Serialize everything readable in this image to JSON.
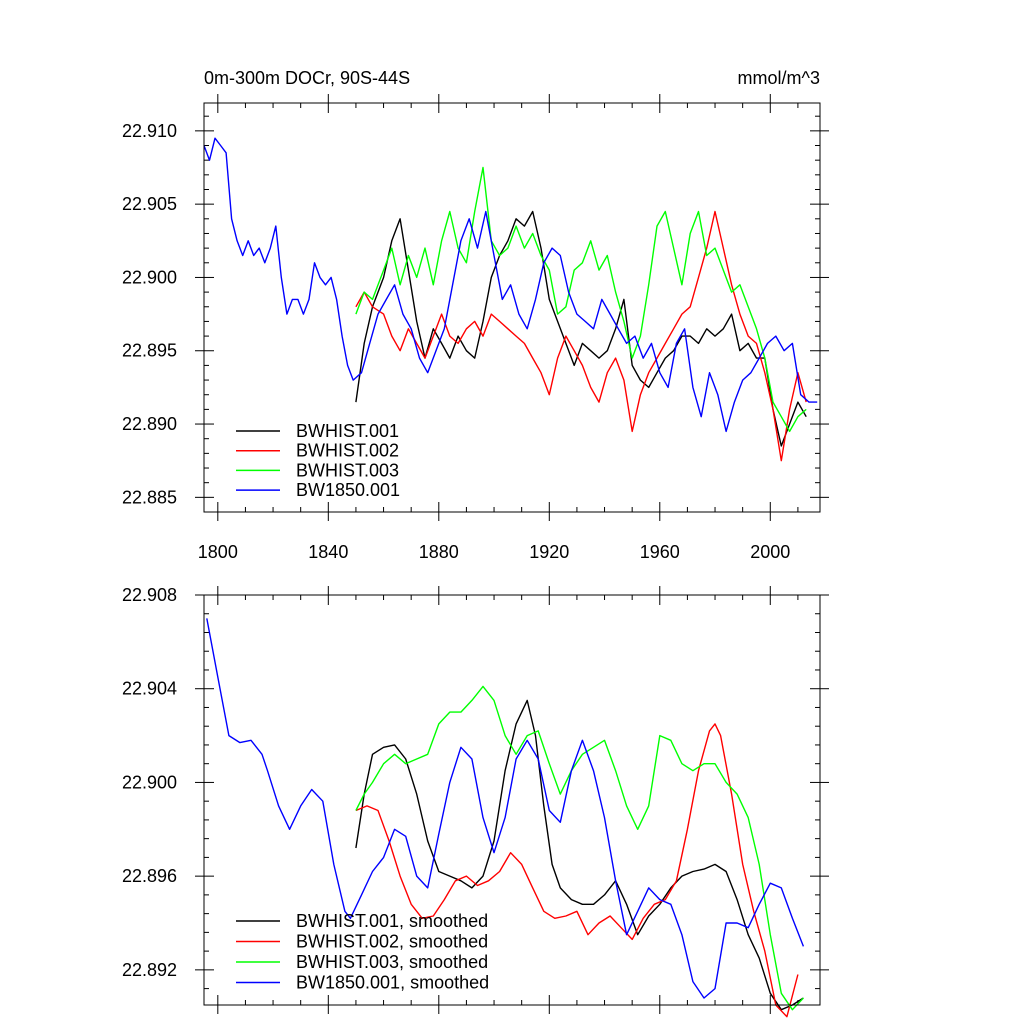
{
  "chart_data": [
    {
      "type": "line",
      "title_left": "0m-300m DOCr, 90S-44S",
      "title_right": "mmol/m^3",
      "xlim": [
        1795,
        2018
      ],
      "ylim": [
        22.884,
        22.9119
      ],
      "x_ticks": [
        1800,
        1840,
        1880,
        1920,
        1960,
        2000
      ],
      "x_tick_labels": [
        "1800",
        "1840",
        "1880",
        "1920",
        "1960",
        "2000"
      ],
      "y_ticks": [
        22.885,
        22.89,
        22.895,
        22.9,
        22.905,
        22.91
      ],
      "y_tick_labels": [
        "22.885",
        "22.890",
        "22.895",
        "22.900",
        "22.905",
        "22.910"
      ],
      "legend_position": "bottom-left",
      "series": [
        {
          "name": "BWHIST.001",
          "color": "#000000",
          "x": [
            1850,
            1853,
            1856,
            1860,
            1863,
            1866,
            1869,
            1872,
            1875,
            1878,
            1881,
            1884,
            1887,
            1890,
            1893,
            1896,
            1899,
            1902,
            1905,
            1908,
            1911,
            1914,
            1917,
            1920,
            1923,
            1926,
            1929,
            1932,
            1935,
            1938,
            1941,
            1944,
            1947,
            1950,
            1953,
            1956,
            1959,
            1962,
            1965,
            1968,
            1971,
            1974,
            1977,
            1980,
            1983,
            1986,
            1989,
            1992,
            1995,
            1998,
            2001,
            2004,
            2007,
            2010,
            2013
          ],
          "values": [
            22.8915,
            22.8955,
            22.898,
            22.9,
            22.9025,
            22.904,
            22.9005,
            22.897,
            22.8945,
            22.8965,
            22.8955,
            22.8945,
            22.896,
            22.895,
            22.8945,
            22.897,
            22.9,
            22.9015,
            22.9025,
            22.904,
            22.9035,
            22.9045,
            22.902,
            22.8985,
            22.897,
            22.8955,
            22.894,
            22.8955,
            22.895,
            22.8945,
            22.895,
            22.8965,
            22.8985,
            22.894,
            22.893,
            22.8925,
            22.8935,
            22.8945,
            22.895,
            22.896,
            22.896,
            22.8955,
            22.8965,
            22.896,
            22.8965,
            22.8975,
            22.895,
            22.8955,
            22.8945,
            22.8945,
            22.891,
            22.8885,
            22.89,
            22.8915,
            22.8905
          ]
        },
        {
          "name": "BWHIST.002",
          "color": "#ff0000",
          "x": [
            1850,
            1853,
            1856,
            1860,
            1863,
            1866,
            1869,
            1872,
            1875,
            1878,
            1881,
            1884,
            1887,
            1890,
            1893,
            1896,
            1899,
            1902,
            1905,
            1908,
            1911,
            1914,
            1917,
            1920,
            1923,
            1926,
            1929,
            1932,
            1935,
            1938,
            1941,
            1944,
            1947,
            1950,
            1953,
            1956,
            1959,
            1962,
            1965,
            1968,
            1971,
            1974,
            1977,
            1980,
            1983,
            1986,
            1989,
            1992,
            1995,
            1998,
            2001,
            2004,
            2007,
            2010,
            2013
          ],
          "values": [
            22.898,
            22.899,
            22.898,
            22.8975,
            22.896,
            22.895,
            22.8965,
            22.8955,
            22.8945,
            22.896,
            22.8975,
            22.896,
            22.8955,
            22.8965,
            22.897,
            22.896,
            22.8975,
            22.897,
            22.8965,
            22.896,
            22.8955,
            22.8945,
            22.8935,
            22.892,
            22.8945,
            22.896,
            22.895,
            22.894,
            22.8925,
            22.8915,
            22.8935,
            22.8945,
            22.893,
            22.8895,
            22.892,
            22.8935,
            22.8945,
            22.8955,
            22.8965,
            22.8975,
            22.898,
            22.9,
            22.902,
            22.9045,
            22.902,
            22.8995,
            22.8975,
            22.896,
            22.8955,
            22.8935,
            22.891,
            22.8875,
            22.891,
            22.8935,
            22.8915
          ]
        },
        {
          "name": "BWHIST.003",
          "color": "#00ff00",
          "x": [
            1850,
            1853,
            1856,
            1860,
            1863,
            1866,
            1869,
            1872,
            1875,
            1878,
            1881,
            1884,
            1887,
            1890,
            1893,
            1896,
            1899,
            1902,
            1905,
            1908,
            1911,
            1914,
            1917,
            1920,
            1923,
            1926,
            1929,
            1932,
            1935,
            1938,
            1941,
            1944,
            1947,
            1950,
            1953,
            1956,
            1959,
            1962,
            1965,
            1968,
            1971,
            1974,
            1977,
            1980,
            1983,
            1986,
            1989,
            1992,
            1995,
            1998,
            2001,
            2004,
            2007,
            2010,
            2013
          ],
          "values": [
            22.8975,
            22.899,
            22.8985,
            22.9005,
            22.902,
            22.8995,
            22.9015,
            22.9,
            22.902,
            22.8995,
            22.9025,
            22.9045,
            22.902,
            22.901,
            22.9045,
            22.9075,
            22.9025,
            22.9015,
            22.902,
            22.9035,
            22.902,
            22.903,
            22.9015,
            22.9005,
            22.8975,
            22.898,
            22.9005,
            22.901,
            22.9025,
            22.9005,
            22.9015,
            22.899,
            22.897,
            22.8945,
            22.896,
            22.8995,
            22.9035,
            22.9045,
            22.902,
            22.8995,
            22.903,
            22.9045,
            22.9015,
            22.902,
            22.9005,
            22.899,
            22.8995,
            22.898,
            22.8965,
            22.8945,
            22.8915,
            22.8905,
            22.8895,
            22.8905,
            22.891
          ]
        },
        {
          "name": "BW1850.001",
          "color": "#0000ff",
          "x": [
            1795,
            1797,
            1799,
            1801,
            1803,
            1805,
            1807,
            1809,
            1811,
            1813,
            1815,
            1817,
            1819,
            1821,
            1823,
            1825,
            1827,
            1829,
            1831,
            1833,
            1835,
            1837,
            1839,
            1841,
            1843,
            1845,
            1847,
            1849,
            1852,
            1855,
            1858,
            1861,
            1864,
            1867,
            1870,
            1873,
            1876,
            1879,
            1882,
            1885,
            1888,
            1891,
            1894,
            1897,
            1900,
            1903,
            1906,
            1909,
            1912,
            1915,
            1918,
            1921,
            1924,
            1927,
            1930,
            1933,
            1936,
            1939,
            1942,
            1945,
            1948,
            1951,
            1954,
            1957,
            1960,
            1963,
            1966,
            1969,
            1972,
            1975,
            1978,
            1981,
            1984,
            1987,
            1990,
            1993,
            1996,
            1999,
            2002,
            2005,
            2008,
            2011,
            2014,
            2017
          ],
          "values": [
            22.909,
            22.908,
            22.9095,
            22.909,
            22.9085,
            22.904,
            22.9025,
            22.9015,
            22.9025,
            22.9015,
            22.902,
            22.901,
            22.902,
            22.9035,
            22.9,
            22.8975,
            22.8985,
            22.8985,
            22.8975,
            22.8985,
            22.901,
            22.9,
            22.8995,
            22.9,
            22.8985,
            22.896,
            22.894,
            22.893,
            22.8935,
            22.8955,
            22.8975,
            22.8985,
            22.8995,
            22.8975,
            22.8965,
            22.8945,
            22.8935,
            22.895,
            22.8965,
            22.8995,
            22.9025,
            22.904,
            22.902,
            22.9045,
            22.9015,
            22.8985,
            22.8995,
            22.8975,
            22.8965,
            22.8985,
            22.901,
            22.902,
            22.9015,
            22.899,
            22.8975,
            22.897,
            22.8965,
            22.8985,
            22.8975,
            22.8965,
            22.8955,
            22.896,
            22.8945,
            22.8955,
            22.8935,
            22.8925,
            22.8955,
            22.8965,
            22.8925,
            22.8905,
            22.8935,
            22.892,
            22.8895,
            22.8915,
            22.893,
            22.8935,
            22.8945,
            22.8955,
            22.896,
            22.895,
            22.8955,
            22.892,
            22.8915,
            22.8915
          ]
        }
      ]
    },
    {
      "type": "line",
      "xlim": [
        1795,
        2018
      ],
      "ylim": [
        22.8905,
        22.908
      ],
      "x_ticks": [
        1800,
        1840,
        1880,
        1920,
        1960,
        2000
      ],
      "x_tick_labels": [],
      "y_ticks": [
        22.892,
        22.896,
        22.9,
        22.904,
        22.908
      ],
      "y_tick_labels": [
        "22.892",
        "22.896",
        "22.900",
        "22.904",
        "22.908"
      ],
      "legend_position": "bottom-left",
      "series": [
        {
          "name": "BWHIST.001, smoothed",
          "color": "#000000",
          "x": [
            1850,
            1853,
            1856,
            1860,
            1864,
            1868,
            1872,
            1876,
            1880,
            1884,
            1888,
            1892,
            1896,
            1900,
            1904,
            1908,
            1912,
            1915,
            1918,
            1921,
            1924,
            1928,
            1932,
            1936,
            1940,
            1944,
            1948,
            1952,
            1956,
            1960,
            1964,
            1968,
            1972,
            1976,
            1980,
            1984,
            1988,
            1992,
            1996,
            2000,
            2004,
            2008,
            2012
          ],
          "values": [
            22.8972,
            22.8995,
            22.9012,
            22.9015,
            22.9016,
            22.901,
            22.8995,
            22.8975,
            22.8962,
            22.896,
            22.8958,
            22.8955,
            22.896,
            22.8975,
            22.9005,
            22.9025,
            22.9035,
            22.902,
            22.899,
            22.8965,
            22.8955,
            22.895,
            22.8948,
            22.8948,
            22.8952,
            22.8958,
            22.8948,
            22.8935,
            22.8943,
            22.8948,
            22.8955,
            22.896,
            22.8962,
            22.8963,
            22.8965,
            22.8962,
            22.895,
            22.8935,
            22.8925,
            22.891,
            22.8903,
            22.8905,
            22.8908
          ]
        },
        {
          "name": "BWHIST.002, smoothed",
          "color": "#ff0000",
          "x": [
            1850,
            1854,
            1858,
            1862,
            1866,
            1870,
            1874,
            1878,
            1882,
            1886,
            1890,
            1894,
            1898,
            1902,
            1906,
            1910,
            1914,
            1918,
            1922,
            1926,
            1930,
            1934,
            1938,
            1942,
            1946,
            1950,
            1954,
            1958,
            1962,
            1966,
            1970,
            1974,
            1978,
            1980,
            1982,
            1986,
            1990,
            1994,
            1998,
            2002,
            2006,
            2010
          ],
          "values": [
            22.8988,
            22.899,
            22.8988,
            22.8975,
            22.896,
            22.8948,
            22.8942,
            22.8943,
            22.895,
            22.8958,
            22.896,
            22.8956,
            22.8958,
            22.8962,
            22.897,
            22.8965,
            22.8955,
            22.8945,
            22.8942,
            22.8943,
            22.8945,
            22.8935,
            22.894,
            22.8943,
            22.8938,
            22.8933,
            22.8942,
            22.8948,
            22.895,
            22.8958,
            22.898,
            22.9005,
            22.9022,
            22.9025,
            22.902,
            22.8995,
            22.8965,
            22.8945,
            22.8928,
            22.8905,
            22.89,
            22.8918
          ]
        },
        {
          "name": "BWHIST.003, smoothed",
          "color": "#00ff00",
          "x": [
            1850,
            1853,
            1856,
            1860,
            1864,
            1868,
            1872,
            1876,
            1880,
            1884,
            1888,
            1892,
            1896,
            1900,
            1904,
            1908,
            1912,
            1916,
            1920,
            1924,
            1928,
            1932,
            1936,
            1940,
            1944,
            1948,
            1952,
            1956,
            1960,
            1964,
            1968,
            1972,
            1976,
            1980,
            1984,
            1988,
            1992,
            1996,
            2000,
            2004,
            2008,
            2012
          ],
          "values": [
            22.8988,
            22.8995,
            22.9,
            22.9008,
            22.9012,
            22.9008,
            22.901,
            22.9012,
            22.9025,
            22.903,
            22.903,
            22.9035,
            22.9041,
            22.9035,
            22.902,
            22.9012,
            22.902,
            22.9022,
            22.9008,
            22.8995,
            22.9005,
            22.9012,
            22.9015,
            22.9018,
            22.9005,
            22.899,
            22.898,
            22.899,
            22.902,
            22.9018,
            22.9008,
            22.9005,
            22.9008,
            22.9008,
            22.9,
            22.8995,
            22.8985,
            22.8965,
            22.8935,
            22.891,
            22.8903,
            22.8908
          ]
        },
        {
          "name": "BW1850.001, smoothed",
          "color": "#0000ff",
          "x": [
            1796,
            1800,
            1804,
            1808,
            1812,
            1816,
            1818,
            1822,
            1826,
            1830,
            1834,
            1838,
            1842,
            1846,
            1848,
            1852,
            1856,
            1860,
            1864,
            1868,
            1872,
            1876,
            1880,
            1884,
            1888,
            1892,
            1896,
            1900,
            1904,
            1908,
            1912,
            1916,
            1920,
            1924,
            1928,
            1932,
            1936,
            1940,
            1944,
            1948,
            1952,
            1956,
            1960,
            1964,
            1968,
            1972,
            1976,
            1980,
            1984,
            1988,
            1992,
            1996,
            2000,
            2004,
            2008,
            2012
          ],
          "values": [
            22.907,
            22.9045,
            22.902,
            22.9017,
            22.9018,
            22.9012,
            22.9005,
            22.899,
            22.898,
            22.899,
            22.8997,
            22.8992,
            22.8965,
            22.8945,
            22.8942,
            22.8952,
            22.8962,
            22.8968,
            22.898,
            22.8977,
            22.896,
            22.8955,
            22.8978,
            22.9,
            22.9015,
            22.901,
            22.8985,
            22.897,
            22.8985,
            22.901,
            22.9018,
            22.901,
            22.8988,
            22.8983,
            22.9005,
            22.9018,
            22.9005,
            22.8985,
            22.8958,
            22.8935,
            22.8945,
            22.8955,
            22.895,
            22.8948,
            22.8935,
            22.8915,
            22.8908,
            22.8912,
            22.894,
            22.894,
            22.8938,
            22.8948,
            22.8957,
            22.8955,
            22.8942,
            22.893
          ]
        }
      ]
    }
  ]
}
